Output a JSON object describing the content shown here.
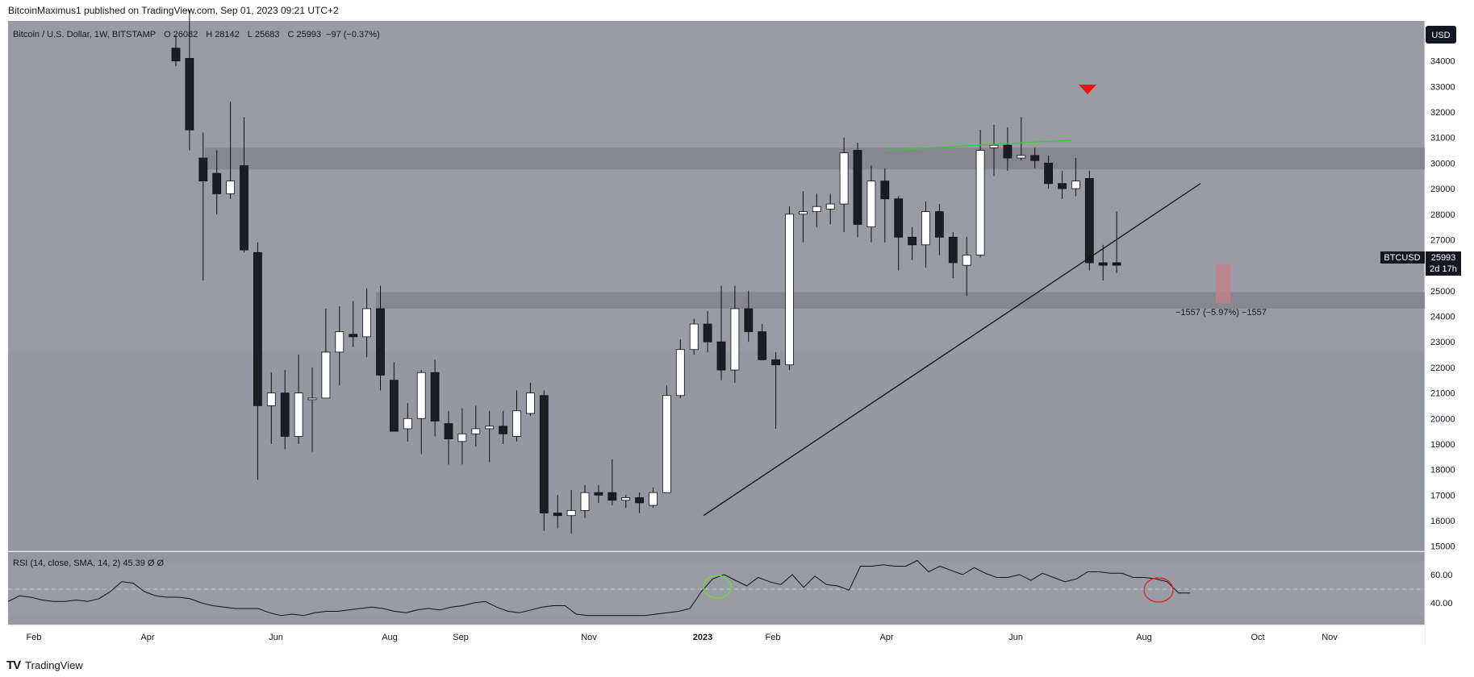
{
  "publisher": "BitcoinMaximus1 published on TradingView.com, Sep 01, 2023 09:21 UTC+2",
  "header": {
    "symbol_text": "Bitcoin / U.S. Dollar, 1W, BITSTAMP",
    "o_label": "O",
    "o_value": "26082",
    "h_label": "H",
    "h_value": "28142",
    "l_label": "L",
    "l_value": "25683",
    "c_label": "C",
    "c_value": "25993",
    "change": "−97 (−0.37%)"
  },
  "currency_button": "USD",
  "price_tag": {
    "symbol": "BTCUSD",
    "value": "25993",
    "countdown": "2d 17h"
  },
  "measure_label": "−1557 (−5.97%) −1557",
  "rsi_header": "RSI (14, close, SMA, 14, 2)  45.39  Ø  Ø",
  "footer": {
    "logo": "TV",
    "brand": "TradingView"
  },
  "colors": {
    "bg_top": "#9a9ca4",
    "bg_mid": "#9598a1",
    "zone": "#7f8088",
    "bull": "#ffffff",
    "bear": "#1c1d22",
    "green_line": "#39c93c",
    "arrow": "#e8150b",
    "measure": "#c77f84",
    "circle_green": "#6ddc3a",
    "circle_red": "#e31b1b"
  },
  "chart_data": {
    "type": "candlestick",
    "symbol": "BTCUSD",
    "timeframe": "1W",
    "exchange": "BITSTAMP",
    "y_ticks": [
      34000,
      33000,
      32000,
      31000,
      30000,
      29000,
      28000,
      27000,
      26000,
      25000,
      24000,
      23000,
      22000,
      21000,
      20000,
      19000,
      18000,
      17000,
      16000,
      15000
    ],
    "x_ticks": [
      "Feb",
      "Apr",
      "Jun",
      "Aug",
      "Sep",
      "Nov",
      "2023",
      "Feb",
      "Apr",
      "Jun",
      "Aug",
      "Oct",
      "Nov"
    ],
    "candles": [
      {
        "o": 34500,
        "h": 35000,
        "l": 33800,
        "c": 34000
      },
      {
        "o": 34100,
        "h": 36000,
        "l": 30500,
        "c": 31300
      },
      {
        "o": 30200,
        "h": 31200,
        "l": 25400,
        "c": 29300
      },
      {
        "o": 29600,
        "h": 30500,
        "l": 28000,
        "c": 28800
      },
      {
        "o": 28800,
        "h": 32400,
        "l": 28600,
        "c": 29300
      },
      {
        "o": 29900,
        "h": 31800,
        "l": 26500,
        "c": 26600
      },
      {
        "o": 26500,
        "h": 26900,
        "l": 17600,
        "c": 20500
      },
      {
        "o": 20500,
        "h": 21800,
        "l": 19000,
        "c": 21000
      },
      {
        "o": 21000,
        "h": 21900,
        "l": 18800,
        "c": 19300
      },
      {
        "o": 19300,
        "h": 22500,
        "l": 19000,
        "c": 21000
      },
      {
        "o": 20800,
        "h": 22000,
        "l": 18700,
        "c": 20800
      },
      {
        "o": 20800,
        "h": 24300,
        "l": 20800,
        "c": 22600
      },
      {
        "o": 22600,
        "h": 24400,
        "l": 21300,
        "c": 23400
      },
      {
        "o": 23300,
        "h": 24600,
        "l": 22800,
        "c": 23200
      },
      {
        "o": 23200,
        "h": 25100,
        "l": 22400,
        "c": 24300
      },
      {
        "o": 24300,
        "h": 25200,
        "l": 21100,
        "c": 21700
      },
      {
        "o": 21500,
        "h": 22200,
        "l": 19500,
        "c": 19500
      },
      {
        "o": 19600,
        "h": 20600,
        "l": 19100,
        "c": 20000
      },
      {
        "o": 20000,
        "h": 21900,
        "l": 18600,
        "c": 21800
      },
      {
        "o": 21800,
        "h": 22300,
        "l": 19300,
        "c": 19900
      },
      {
        "o": 19800,
        "h": 20300,
        "l": 18200,
        "c": 19200
      },
      {
        "o": 19100,
        "h": 20400,
        "l": 18200,
        "c": 19400
      },
      {
        "o": 19400,
        "h": 20500,
        "l": 18900,
        "c": 19600
      },
      {
        "o": 19600,
        "h": 20300,
        "l": 18300,
        "c": 19700
      },
      {
        "o": 19700,
        "h": 20300,
        "l": 19000,
        "c": 19400
      },
      {
        "o": 19300,
        "h": 21100,
        "l": 19100,
        "c": 20300
      },
      {
        "o": 20200,
        "h": 21400,
        "l": 20100,
        "c": 21000
      },
      {
        "o": 20900,
        "h": 21100,
        "l": 15600,
        "c": 16300
      },
      {
        "o": 16300,
        "h": 17000,
        "l": 15700,
        "c": 16200
      },
      {
        "o": 16200,
        "h": 17200,
        "l": 15500,
        "c": 16400
      },
      {
        "o": 16400,
        "h": 17400,
        "l": 16100,
        "c": 17100
      },
      {
        "o": 17100,
        "h": 17400,
        "l": 16700,
        "c": 17000
      },
      {
        "o": 17100,
        "h": 18400,
        "l": 16600,
        "c": 16800
      },
      {
        "o": 16800,
        "h": 17000,
        "l": 16500,
        "c": 16900
      },
      {
        "o": 16900,
        "h": 17100,
        "l": 16300,
        "c": 16700
      },
      {
        "o": 16600,
        "h": 17300,
        "l": 16500,
        "c": 17100
      },
      {
        "o": 17100,
        "h": 21300,
        "l": 17100,
        "c": 20900
      },
      {
        "o": 20900,
        "h": 23100,
        "l": 20800,
        "c": 22700
      },
      {
        "o": 22700,
        "h": 23900,
        "l": 22500,
        "c": 23700
      },
      {
        "o": 23700,
        "h": 24200,
        "l": 22600,
        "c": 23000
      },
      {
        "o": 23000,
        "h": 25200,
        "l": 21500,
        "c": 21900
      },
      {
        "o": 21900,
        "h": 25200,
        "l": 21400,
        "c": 24300
      },
      {
        "o": 24300,
        "h": 25000,
        "l": 23000,
        "c": 23400
      },
      {
        "o": 23400,
        "h": 23700,
        "l": 22300,
        "c": 22300
      },
      {
        "o": 22300,
        "h": 22600,
        "l": 19600,
        "c": 22100
      },
      {
        "o": 22100,
        "h": 28300,
        "l": 21900,
        "c": 28000
      },
      {
        "o": 28000,
        "h": 28900,
        "l": 26900,
        "c": 28100
      },
      {
        "o": 28100,
        "h": 28800,
        "l": 27500,
        "c": 28300
      },
      {
        "o": 28200,
        "h": 28800,
        "l": 27600,
        "c": 28400
      },
      {
        "o": 28400,
        "h": 31000,
        "l": 27300,
        "c": 30400
      },
      {
        "o": 30500,
        "h": 30800,
        "l": 27100,
        "c": 27600
      },
      {
        "o": 27500,
        "h": 29900,
        "l": 26900,
        "c": 29300
      },
      {
        "o": 29300,
        "h": 29800,
        "l": 26900,
        "c": 28600
      },
      {
        "o": 28600,
        "h": 28700,
        "l": 25800,
        "c": 27100
      },
      {
        "o": 27100,
        "h": 27500,
        "l": 26200,
        "c": 26800
      },
      {
        "o": 26800,
        "h": 28500,
        "l": 25900,
        "c": 28100
      },
      {
        "o": 28100,
        "h": 28400,
        "l": 26400,
        "c": 27100
      },
      {
        "o": 27100,
        "h": 27300,
        "l": 25500,
        "c": 26100
      },
      {
        "o": 26000,
        "h": 27100,
        "l": 24800,
        "c": 26400
      },
      {
        "o": 26400,
        "h": 31300,
        "l": 26300,
        "c": 30500
      },
      {
        "o": 30600,
        "h": 31500,
        "l": 29500,
        "c": 30700
      },
      {
        "o": 30700,
        "h": 31400,
        "l": 29700,
        "c": 30200
      },
      {
        "o": 30200,
        "h": 31800,
        "l": 30100,
        "c": 30300
      },
      {
        "o": 30300,
        "h": 30600,
        "l": 29800,
        "c": 30100
      },
      {
        "o": 30000,
        "h": 30300,
        "l": 29000,
        "c": 29200
      },
      {
        "o": 29200,
        "h": 29700,
        "l": 28600,
        "c": 29000
      },
      {
        "o": 29000,
        "h": 30200,
        "l": 28700,
        "c": 29300
      },
      {
        "o": 29400,
        "h": 29700,
        "l": 25800,
        "c": 26100
      },
      {
        "o": 26100,
        "h": 26800,
        "l": 25400,
        "c": 26000
      },
      {
        "o": 26100,
        "h": 28100,
        "l": 25700,
        "c": 26000
      }
    ],
    "annotations": {
      "resistance_zone": [
        29750,
        30600
      ],
      "support_zone": [
        24300,
        24950
      ],
      "ascending_trendline": [
        {
          "candle": 34,
          "price": 16200
        },
        {
          "candle": 75,
          "price": 29200
        }
      ],
      "green_line": [
        {
          "candle": 49,
          "price": 30500
        },
        {
          "candle": 63,
          "price": 30900
        }
      ],
      "red_arrow_candle": 63,
      "measure_box": [
        24500,
        26050
      ]
    },
    "rsi": {
      "ticks": [
        60,
        40
      ],
      "values": [
        41,
        45,
        44,
        42,
        41,
        41,
        42,
        41,
        43,
        48,
        55,
        54,
        48,
        45,
        44,
        44,
        43,
        40,
        38,
        37,
        36,
        36,
        36,
        33,
        31,
        32,
        31,
        33,
        34,
        34,
        35,
        36,
        37,
        36,
        34,
        33,
        35,
        36,
        35,
        37,
        38,
        40,
        41,
        37,
        34,
        33,
        35,
        37,
        38,
        38,
        32,
        31,
        31,
        31,
        31,
        31,
        31,
        32,
        33,
        34,
        36,
        48,
        57,
        60,
        56,
        52,
        58,
        55,
        53,
        60,
        51,
        59,
        53,
        52,
        49,
        66,
        66,
        67,
        66,
        66,
        70,
        62,
        66,
        63,
        60,
        65,
        61,
        58,
        58,
        60,
        56,
        61,
        58,
        55,
        57,
        62,
        62,
        61,
        61,
        58,
        58,
        57,
        55,
        47,
        47
      ]
    }
  }
}
